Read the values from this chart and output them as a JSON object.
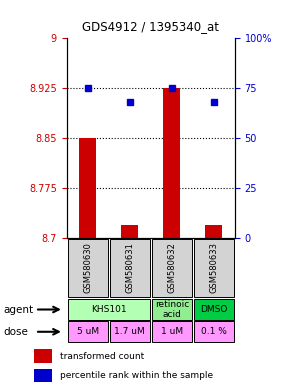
{
  "title": "GDS4912 / 1395340_at",
  "samples": [
    "GSM580630",
    "GSM580631",
    "GSM580632",
    "GSM580633"
  ],
  "bar_values": [
    8.85,
    8.72,
    8.925,
    8.72
  ],
  "bar_bottom": 8.7,
  "dot_values": [
    75,
    68,
    75,
    68
  ],
  "ylim_left": [
    8.7,
    9.0
  ],
  "ylim_right": [
    0,
    100
  ],
  "yticks_left": [
    8.7,
    8.775,
    8.85,
    8.925,
    9.0
  ],
  "yticks_right": [
    0,
    25,
    50,
    75,
    100
  ],
  "ytick_labels_left": [
    "8.7",
    "8.775",
    "8.85",
    "8.925",
    "9"
  ],
  "ytick_labels_right": [
    "0",
    "25",
    "50",
    "75",
    "100%"
  ],
  "hlines": [
    8.925,
    8.85,
    8.775
  ],
  "agent_data": [
    [
      0,
      2,
      "KHS101",
      "#b3ffb3"
    ],
    [
      2,
      3,
      "retinoic\nacid",
      "#90ee90"
    ],
    [
      3,
      4,
      "DMSO",
      "#00cc44"
    ]
  ],
  "dose_labels": [
    "5 uM",
    "1.7 uM",
    "1 uM",
    "0.1 %"
  ],
  "dose_color": "#ff99ff",
  "sample_bg_color": "#d3d3d3",
  "bar_color": "#cc0000",
  "dot_color": "#0000cc",
  "left_label_color": "#cc0000",
  "right_label_color": "#0000cc",
  "legend_bar_label": "transformed count",
  "legend_dot_label": "percentile rank within the sample"
}
